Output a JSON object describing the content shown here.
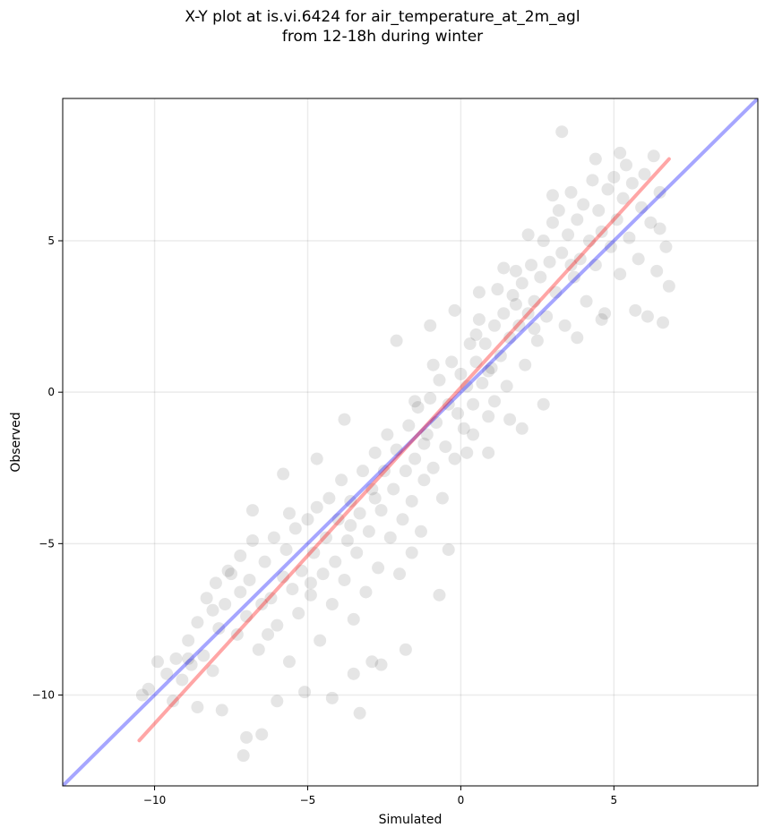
{
  "chart_data": {
    "type": "scatter",
    "title_line1": "X-Y plot at is.vi.6424 for air_temperature_at_2m_agl",
    "title_line2": "from 12-18h during winter",
    "xlabel": "Simulated",
    "ylabel": "Observed",
    "xlim": [
      -13.0,
      9.7
    ],
    "ylim": [
      -13.0,
      9.7
    ],
    "xticks": [
      -10,
      -5,
      0,
      5
    ],
    "yticks": [
      -10,
      -5,
      0,
      5
    ],
    "xtick_labels": [
      "−10",
      "−5",
      "0",
      "5"
    ],
    "ytick_labels": [
      "−10",
      "−5",
      "0",
      "5"
    ],
    "grid": true,
    "reference_line": {
      "name": "1:1",
      "color": "#0000ff",
      "x": [
        -13.0,
        9.7
      ],
      "y": [
        -13.0,
        9.7
      ]
    },
    "fit_line": {
      "color": "#ff0000",
      "x": [
        -10.5,
        6.8
      ],
      "y": [
        -11.5,
        7.7
      ]
    },
    "point_color": "#000000",
    "points": [
      [
        -10.4,
        -10.0
      ],
      [
        -10.2,
        -9.8
      ],
      [
        -9.6,
        -9.3
      ],
      [
        -9.3,
        -8.8
      ],
      [
        -9.1,
        -9.5
      ],
      [
        -8.8,
        -9.0
      ],
      [
        -8.9,
        -8.2
      ],
      [
        -8.6,
        -7.6
      ],
      [
        -8.3,
        -6.8
      ],
      [
        -8.4,
        -8.7
      ],
      [
        -8.1,
        -9.2
      ],
      [
        -7.9,
        -7.8
      ],
      [
        -8.0,
        -6.3
      ],
      [
        -7.7,
        -7.0
      ],
      [
        -7.5,
        -6.0
      ],
      [
        -7.3,
        -8.0
      ],
      [
        -7.2,
        -5.4
      ],
      [
        -7.0,
        -7.4
      ],
      [
        -6.9,
        -6.2
      ],
      [
        -6.8,
        -4.9
      ],
      [
        -6.6,
        -8.5
      ],
      [
        -6.5,
        -7.0
      ],
      [
        -6.4,
        -5.6
      ],
      [
        -6.2,
        -6.8
      ],
      [
        -6.1,
        -4.8
      ],
      [
        -6.0,
        -7.7
      ],
      [
        -5.8,
        -6.1
      ],
      [
        -5.7,
        -5.2
      ],
      [
        -5.6,
        -8.9
      ],
      [
        -5.5,
        -6.5
      ],
      [
        -5.4,
        -4.5
      ],
      [
        -5.3,
        -7.3
      ],
      [
        -5.2,
        -5.9
      ],
      [
        -5.0,
        -4.2
      ],
      [
        -4.9,
        -6.7
      ],
      [
        -4.8,
        -5.3
      ],
      [
        -4.7,
        -3.8
      ],
      [
        -4.6,
        -8.2
      ],
      [
        -4.5,
        -6.0
      ],
      [
        -4.4,
        -4.8
      ],
      [
        -4.3,
        -3.5
      ],
      [
        -4.2,
        -7.0
      ],
      [
        -4.1,
        -5.6
      ],
      [
        -4.0,
        -4.2
      ],
      [
        -3.9,
        -2.9
      ],
      [
        -3.8,
        -6.2
      ],
      [
        -3.7,
        -4.9
      ],
      [
        -3.6,
        -3.6
      ],
      [
        -3.5,
        -7.5
      ],
      [
        -3.4,
        -5.3
      ],
      [
        -3.3,
        -4.0
      ],
      [
        -3.2,
        -2.6
      ],
      [
        -3.1,
        -6.6
      ],
      [
        -3.0,
        -4.6
      ],
      [
        -2.9,
        -3.2
      ],
      [
        -2.8,
        -2.0
      ],
      [
        -2.7,
        -5.8
      ],
      [
        -2.6,
        -3.9
      ],
      [
        -2.5,
        -2.6
      ],
      [
        -2.4,
        -1.4
      ],
      [
        -2.3,
        -4.8
      ],
      [
        -2.2,
        -3.2
      ],
      [
        -2.1,
        -1.9
      ],
      [
        -2.0,
        -6.0
      ],
      [
        -1.9,
        -4.2
      ],
      [
        -1.8,
        -2.6
      ],
      [
        -1.7,
        -1.1
      ],
      [
        -1.6,
        -3.6
      ],
      [
        -1.5,
        -2.2
      ],
      [
        -1.4,
        -0.5
      ],
      [
        -1.3,
        -4.6
      ],
      [
        -1.2,
        -2.9
      ],
      [
        -1.1,
        -1.4
      ],
      [
        -1.0,
        -0.2
      ],
      [
        -0.9,
        -2.5
      ],
      [
        -0.8,
        -1.0
      ],
      [
        -0.7,
        0.4
      ],
      [
        -0.6,
        -3.5
      ],
      [
        -0.5,
        -1.8
      ],
      [
        -0.4,
        -0.4
      ],
      [
        -0.3,
        1.0
      ],
      [
        -0.2,
        -2.2
      ],
      [
        -0.1,
        -0.7
      ],
      [
        0.0,
        0.6
      ],
      [
        0.1,
        -1.2
      ],
      [
        0.2,
        0.2
      ],
      [
        0.3,
        1.6
      ],
      [
        0.4,
        -0.4
      ],
      [
        0.5,
        1.0
      ],
      [
        0.6,
        2.4
      ],
      [
        0.7,
        0.3
      ],
      [
        0.8,
        1.6
      ],
      [
        0.9,
        -0.8
      ],
      [
        1.0,
        0.8
      ],
      [
        1.1,
        2.2
      ],
      [
        1.2,
        3.4
      ],
      [
        1.3,
        1.2
      ],
      [
        1.4,
        2.6
      ],
      [
        1.5,
        0.2
      ],
      [
        1.6,
        1.8
      ],
      [
        1.7,
        3.2
      ],
      [
        1.8,
        4.0
      ],
      [
        1.9,
        2.2
      ],
      [
        2.0,
        3.6
      ],
      [
        2.1,
        0.9
      ],
      [
        2.2,
        2.6
      ],
      [
        2.3,
        4.2
      ],
      [
        2.4,
        3.0
      ],
      [
        2.5,
        1.7
      ],
      [
        2.6,
        3.8
      ],
      [
        2.7,
        5.0
      ],
      [
        2.8,
        2.5
      ],
      [
        2.9,
        4.3
      ],
      [
        3.0,
        5.6
      ],
      [
        3.1,
        3.3
      ],
      [
        3.2,
        6.0
      ],
      [
        3.3,
        4.6
      ],
      [
        3.4,
        2.2
      ],
      [
        3.5,
        5.2
      ],
      [
        3.6,
        6.6
      ],
      [
        3.7,
        3.8
      ],
      [
        3.8,
        5.7
      ],
      [
        3.9,
        4.4
      ],
      [
        4.0,
        6.2
      ],
      [
        4.1,
        3.0
      ],
      [
        4.2,
        5.0
      ],
      [
        4.3,
        7.0
      ],
      [
        4.4,
        4.2
      ],
      [
        4.5,
        6.0
      ],
      [
        4.6,
        5.3
      ],
      [
        4.7,
        2.6
      ],
      [
        4.8,
        6.7
      ],
      [
        4.9,
        4.8
      ],
      [
        5.0,
        7.1
      ],
      [
        5.1,
        5.7
      ],
      [
        5.2,
        3.9
      ],
      [
        5.3,
        6.4
      ],
      [
        5.4,
        7.5
      ],
      [
        5.5,
        5.1
      ],
      [
        5.6,
        6.9
      ],
      [
        5.8,
        4.4
      ],
      [
        5.9,
        6.1
      ],
      [
        6.0,
        7.2
      ],
      [
        6.1,
        2.5
      ],
      [
        6.2,
        5.6
      ],
      [
        6.3,
        7.8
      ],
      [
        6.4,
        4.0
      ],
      [
        6.5,
        6.6
      ],
      [
        6.6,
        2.3
      ],
      [
        6.7,
        4.8
      ],
      [
        6.8,
        3.5
      ],
      [
        3.3,
        8.6
      ],
      [
        5.2,
        7.9
      ],
      [
        -7.0,
        -11.4
      ],
      [
        -7.1,
        -12.0
      ],
      [
        -6.5,
        -11.3
      ],
      [
        -3.3,
        -10.6
      ],
      [
        -4.2,
        -10.1
      ],
      [
        -2.6,
        -9.0
      ],
      [
        -1.8,
        -8.5
      ],
      [
        -2.9,
        -8.9
      ],
      [
        -0.7,
        -6.7
      ],
      [
        -1.6,
        -5.3
      ],
      [
        0.2,
        -2.0
      ],
      [
        -3.5,
        -9.3
      ],
      [
        -5.1,
        -9.9
      ],
      [
        -6.0,
        -10.2
      ],
      [
        -7.8,
        -10.5
      ],
      [
        -8.6,
        -10.4
      ],
      [
        -9.4,
        -10.2
      ],
      [
        -3.8,
        -0.9
      ],
      [
        -2.1,
        1.7
      ],
      [
        -1.0,
        2.2
      ],
      [
        -0.2,
        2.7
      ],
      [
        0.6,
        3.3
      ],
      [
        1.4,
        4.1
      ],
      [
        2.2,
        5.2
      ],
      [
        3.0,
        6.5
      ],
      [
        4.4,
        7.7
      ],
      [
        0.9,
        -2.0
      ],
      [
        2.0,
        -1.2
      ],
      [
        2.7,
        -0.4
      ],
      [
        1.6,
        -0.9
      ],
      [
        -5.8,
        -2.7
      ],
      [
        -6.8,
        -3.9
      ],
      [
        -4.7,
        -2.2
      ],
      [
        -9.9,
        -8.9
      ],
      [
        -8.9,
        -8.8
      ],
      [
        -7.6,
        -5.9
      ],
      [
        -0.4,
        -5.2
      ],
      [
        0.4,
        -1.4
      ],
      [
        1.1,
        -0.3
      ],
      [
        3.8,
        1.8
      ],
      [
        4.6,
        2.4
      ],
      [
        5.7,
        2.7
      ],
      [
        6.5,
        5.4
      ],
      [
        -1.2,
        -1.7
      ],
      [
        0.9,
        0.7
      ],
      [
        1.8,
        2.9
      ],
      [
        -2.8,
        -3.5
      ],
      [
        -4.9,
        -6.3
      ],
      [
        -6.3,
        -8.0
      ],
      [
        -0.9,
        0.9
      ],
      [
        0.5,
        1.9
      ],
      [
        2.4,
        2.1
      ],
      [
        3.6,
        4.2
      ],
      [
        -1.5,
        -0.3
      ],
      [
        -3.6,
        -4.4
      ],
      [
        -5.6,
        -4.0
      ],
      [
        -7.2,
        -6.6
      ],
      [
        -8.1,
        -7.2
      ]
    ]
  }
}
